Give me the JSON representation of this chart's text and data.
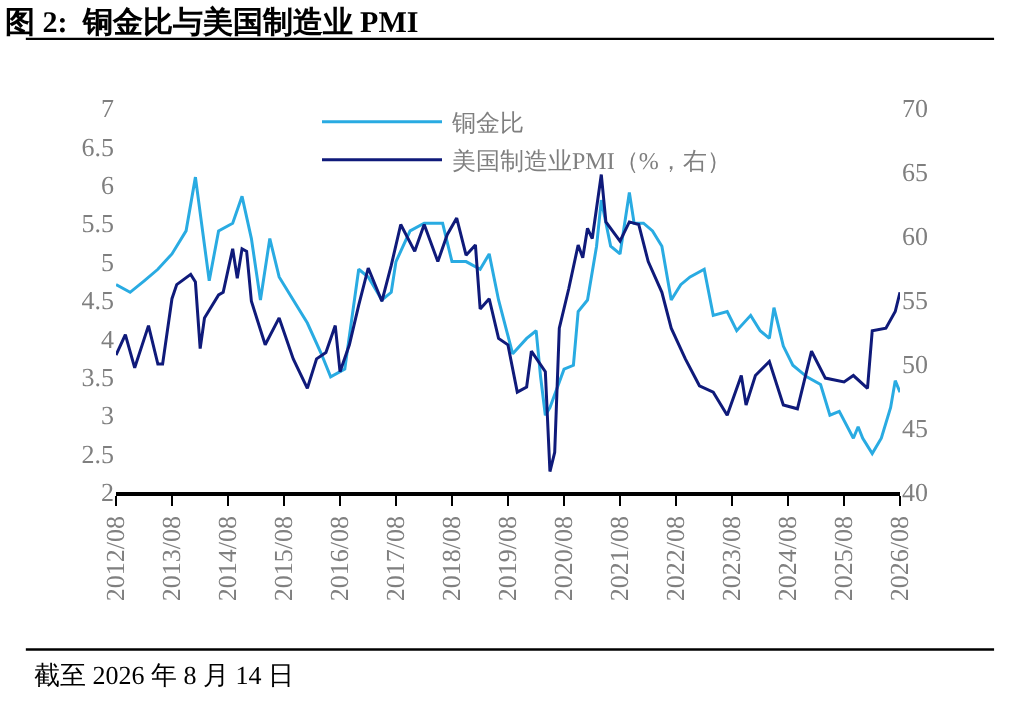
{
  "chart_data": {
    "type": "line",
    "title": "图 2:  铜金比与美国制造业 PMI",
    "annotations": [
      "截至 2026 年 8 月 14 日"
    ],
    "series": [
      {
        "name": "铜金比",
        "color": "#29abe2",
        "x": [
          "2012-08",
          "2012-11",
          "2013-02",
          "2013-05",
          "2013-08",
          "2013-11",
          "2014-01",
          "2014-04",
          "2014-06",
          "2014-09",
          "2014-11",
          "2015-01",
          "2015-03",
          "2015-05",
          "2015-07",
          "2015-10",
          "2016-01",
          "2016-04",
          "2016-06",
          "2016-09",
          "2016-12",
          "2017-02",
          "2017-05",
          "2017-07",
          "2017-08",
          "2017-11",
          "2018-02",
          "2018-06",
          "2018-08",
          "2018-11",
          "2019-02",
          "2019-04",
          "2019-06",
          "2019-09",
          "2019-12",
          "2020-02",
          "2020-03",
          "2020-04",
          "2020-05",
          "2020-08",
          "2020-10",
          "2020-11",
          "2021-01",
          "2021-03",
          "2021-04",
          "2021-06",
          "2021-08",
          "2021-10",
          "2021-11",
          "2022-01",
          "2022-03",
          "2022-05",
          "2022-07",
          "2022-09",
          "2022-11",
          "2023-02",
          "2023-04",
          "2023-07",
          "2023-09",
          "2023-12",
          "2024-02",
          "2024-04",
          "2024-05",
          "2024-07",
          "2024-09",
          "2024-12",
          "2025-03",
          "2025-05",
          "2025-07",
          "2025-10",
          "2025-11",
          "2025-12",
          "2026-02",
          "2026-04",
          "2026-06",
          "2026-07",
          "2026-08"
        ],
        "values": [
          4.7,
          4.6,
          4.75,
          4.9,
          5.1,
          5.4,
          6.1,
          4.75,
          5.4,
          5.5,
          5.85,
          5.3,
          4.5,
          5.3,
          4.8,
          4.5,
          4.2,
          3.8,
          3.5,
          3.6,
          4.9,
          4.8,
          4.5,
          4.6,
          5.0,
          5.4,
          5.5,
          5.5,
          5.0,
          5.0,
          4.9,
          5.1,
          4.5,
          3.8,
          4.0,
          4.1,
          3.5,
          3.0,
          3.1,
          3.6,
          3.65,
          4.35,
          4.5,
          5.2,
          5.8,
          5.2,
          5.1,
          5.9,
          5.5,
          5.5,
          5.4,
          5.2,
          4.5,
          4.7,
          4.8,
          4.9,
          4.3,
          4.35,
          4.1,
          4.3,
          4.1,
          4.0,
          4.4,
          3.9,
          3.65,
          3.5,
          3.4,
          3.0,
          3.05,
          2.7,
          2.85,
          2.7,
          2.5,
          2.7,
          3.1,
          3.45,
          3.3
        ]
      },
      {
        "name": "美国制造业PMI（%，右）",
        "color": "#0f1a7a",
        "axis": "y2",
        "x": [
          "2012-08",
          "2012-10",
          "2012-12",
          "2013-03",
          "2013-05",
          "2013-06",
          "2013-08",
          "2013-09",
          "2013-12",
          "2014-01",
          "2014-02",
          "2014-03",
          "2014-06",
          "2014-07",
          "2014-09",
          "2014-10",
          "2014-11",
          "2014-12",
          "2015-01",
          "2015-04",
          "2015-07",
          "2015-10",
          "2016-01",
          "2016-03",
          "2016-05",
          "2016-07",
          "2016-08",
          "2016-10",
          "2016-12",
          "2017-02",
          "2017-05",
          "2017-07",
          "2017-09",
          "2017-12",
          "2018-02",
          "2018-05",
          "2018-07",
          "2018-09",
          "2018-11",
          "2019-01",
          "2019-02",
          "2019-04",
          "2019-06",
          "2019-08",
          "2019-10",
          "2019-12",
          "2020-01",
          "2020-04",
          "2020-05",
          "2020-06",
          "2020-07",
          "2020-09",
          "2020-11",
          "2020-12",
          "2021-01",
          "2021-02",
          "2021-04",
          "2021-05",
          "2021-08",
          "2021-10",
          "2021-12",
          "2022-02",
          "2022-05",
          "2022-07",
          "2022-10",
          "2023-01",
          "2023-04",
          "2023-07",
          "2023-10",
          "2023-11",
          "2024-01",
          "2024-04",
          "2024-07",
          "2024-10",
          "2025-01",
          "2025-04",
          "2025-08",
          "2025-10",
          "2026-01",
          "2026-02",
          "2026-05",
          "2026-07",
          "2026-08"
        ],
        "values": [
          50.7,
          52.3,
          49.7,
          53.0,
          50.0,
          50.0,
          55.1,
          56.2,
          57.0,
          56.4,
          51.2,
          53.6,
          55.4,
          55.6,
          59.0,
          56.7,
          59.0,
          58.8,
          54.9,
          51.5,
          53.6,
          50.4,
          48.1,
          50.4,
          50.9,
          53.0,
          49.4,
          51.5,
          54.6,
          57.5,
          54.9,
          57.7,
          60.9,
          58.8,
          60.9,
          58.0,
          60.1,
          61.4,
          58.5,
          59.3,
          54.3,
          55.1,
          52.0,
          51.5,
          47.8,
          48.2,
          51.0,
          49.4,
          41.6,
          43.1,
          52.8,
          55.9,
          59.3,
          58.3,
          60.6,
          59.8,
          64.8,
          61.1,
          59.6,
          61.1,
          60.9,
          58.0,
          55.6,
          52.8,
          50.4,
          48.3,
          47.8,
          46.0,
          49.1,
          46.8,
          49.1,
          50.2,
          46.8,
          46.5,
          51.0,
          48.9,
          48.6,
          49.1,
          48.1,
          52.6,
          52.8,
          54.1,
          55.6
        ]
      }
    ],
    "xlim": [
      "2012-08",
      "2026-08"
    ],
    "xticks": [
      {
        "value": "2012-08",
        "label": "2012/08"
      },
      {
        "value": "2013-08",
        "label": "2013/08"
      },
      {
        "value": "2014-08",
        "label": "2014/08"
      },
      {
        "value": "2015-08",
        "label": "2015/08"
      },
      {
        "value": "2016-08",
        "label": "2016/08"
      },
      {
        "value": "2017-08",
        "label": "2017/08"
      },
      {
        "value": "2018-08",
        "label": "2018/08"
      },
      {
        "value": "2019-08",
        "label": "2019/08"
      },
      {
        "value": "2020-08",
        "label": "2020/08"
      },
      {
        "value": "2021-08",
        "label": "2021/08"
      },
      {
        "value": "2022-08",
        "label": "2022/08"
      },
      {
        "value": "2023-08",
        "label": "2023/08"
      },
      {
        "value": "2024-08",
        "label": "2024/08"
      },
      {
        "value": "2025-08",
        "label": "2025/08"
      },
      {
        "value": "2026-08",
        "label": "2026/08"
      }
    ],
    "ylim": [
      2,
      7
    ],
    "yticks": [
      2,
      2.5,
      3,
      3.5,
      4,
      4.5,
      5,
      5.5,
      6,
      6.5,
      7
    ],
    "y2lim": [
      40,
      70
    ],
    "y2ticks": [
      40,
      45,
      50,
      55,
      60,
      65,
      70
    ],
    "legend": "top",
    "line_style": "solid",
    "marker": "none"
  }
}
